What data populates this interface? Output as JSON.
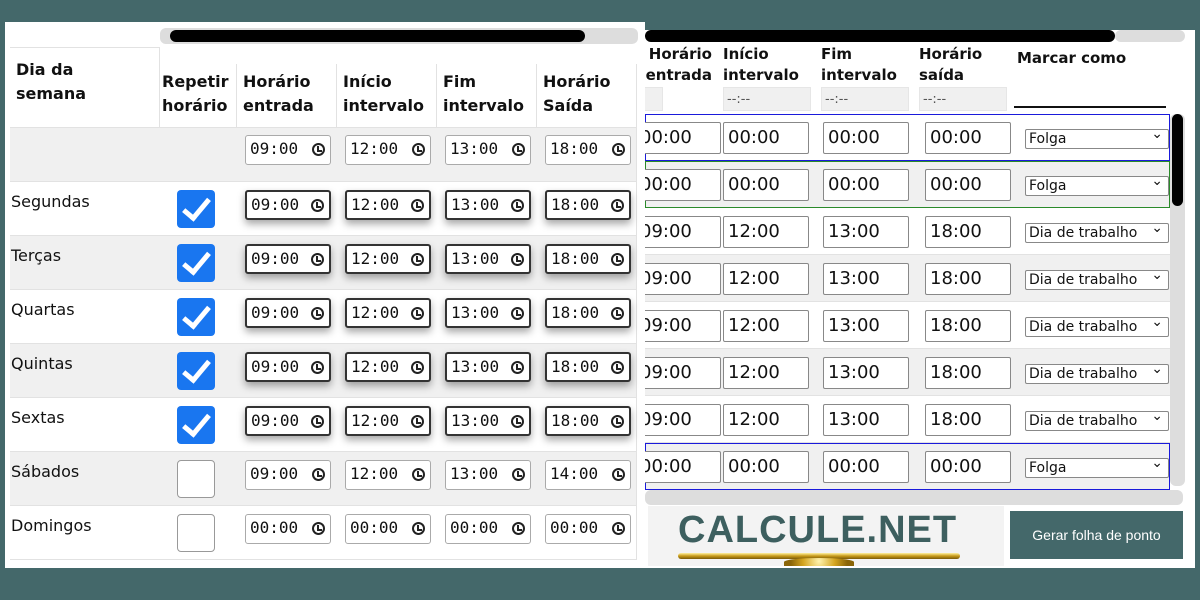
{
  "left": {
    "headers": {
      "day": "Dia da semana",
      "repeat": "Repetir horário",
      "entrada": "Horário entrada",
      "inicio": "Início intervalo",
      "fim": "Fim intervalo",
      "saida": "Horário Saída"
    },
    "preset": [
      "09:00",
      "12:00",
      "13:00",
      "18:00"
    ],
    "rows": [
      {
        "day": "Segundas",
        "checked": true,
        "times": [
          "09:00",
          "12:00",
          "13:00",
          "18:00"
        ]
      },
      {
        "day": "Terças",
        "checked": true,
        "times": [
          "09:00",
          "12:00",
          "13:00",
          "18:00"
        ]
      },
      {
        "day": "Quartas",
        "checked": true,
        "times": [
          "09:00",
          "12:00",
          "13:00",
          "18:00"
        ]
      },
      {
        "day": "Quintas",
        "checked": true,
        "times": [
          "09:00",
          "12:00",
          "13:00",
          "18:00"
        ]
      },
      {
        "day": "Sextas",
        "checked": true,
        "times": [
          "09:00",
          "12:00",
          "13:00",
          "18:00"
        ]
      },
      {
        "day": "Sábados",
        "checked": false,
        "times": [
          "09:00",
          "12:00",
          "13:00",
          "14:00"
        ]
      },
      {
        "day": "Domingos",
        "checked": false,
        "times": [
          "00:00",
          "00:00",
          "00:00",
          "00:00"
        ]
      }
    ]
  },
  "right": {
    "headers": {
      "entrada": "Horário entrada",
      "inicio": "Início intervalo",
      "fim": "Fim intervalo",
      "saida": "Horário saída",
      "marcar": "Marcar como"
    },
    "placeholder": "--:--",
    "rows": [
      {
        "times": [
          "00:00",
          "00:00",
          "00:00",
          "00:00"
        ],
        "mark": "Folga",
        "highlight": "#1a1adb"
      },
      {
        "times": [
          "00:00",
          "00:00",
          "00:00",
          "00:00"
        ],
        "mark": "Folga",
        "highlight": "#2a8a2a"
      },
      {
        "times": [
          "09:00",
          "12:00",
          "13:00",
          "18:00"
        ],
        "mark": "Dia de trabalho"
      },
      {
        "times": [
          "09:00",
          "12:00",
          "13:00",
          "18:00"
        ],
        "mark": "Dia de trabalho"
      },
      {
        "times": [
          "09:00",
          "12:00",
          "13:00",
          "18:00"
        ],
        "mark": "Dia de trabalho"
      },
      {
        "times": [
          "09:00",
          "12:00",
          "13:00",
          "18:00"
        ],
        "mark": "Dia de trabalho"
      },
      {
        "times": [
          "09:00",
          "12:00",
          "13:00",
          "18:00"
        ],
        "mark": "Dia de trabalho"
      },
      {
        "times": [
          "00:00",
          "00:00",
          "00:00",
          "00:00"
        ],
        "mark": "Folga",
        "highlight": "#1a1adb"
      }
    ],
    "button": "Gerar folha de ponto"
  },
  "logo": {
    "text": "CALCULE.NET"
  }
}
